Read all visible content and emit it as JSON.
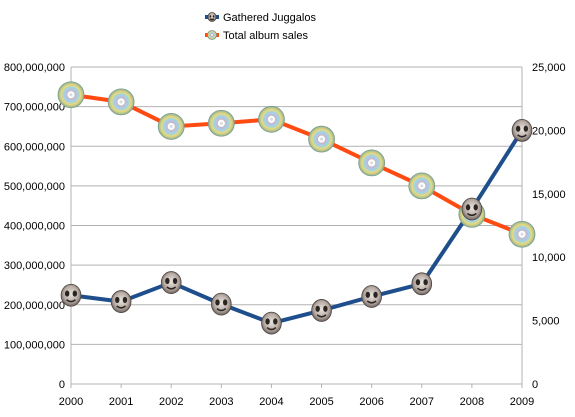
{
  "chart_data": {
    "type": "line",
    "categories": [
      "2000",
      "2001",
      "2002",
      "2003",
      "2004",
      "2005",
      "2006",
      "2007",
      "2008",
      "2009"
    ],
    "series": [
      {
        "name": "Gathered Juggalos",
        "axis": "right",
        "color": "#1f4e8c",
        "marker_icon": "juggalo-face-icon",
        "values": [
          7000,
          6500,
          8000,
          6300,
          4800,
          5800,
          6900,
          7900,
          13800,
          20000
        ]
      },
      {
        "name": "Total album sales",
        "axis": "left",
        "color": "#ff4a12",
        "marker_icon": "cd-disc-icon",
        "values": [
          730000000,
          712000000,
          650000000,
          658000000,
          668000000,
          618000000,
          558000000,
          500000000,
          428000000,
          378000000
        ]
      }
    ],
    "y_left": {
      "range": [
        0,
        800000000
      ],
      "ticks": [
        "0",
        "100,000,000",
        "200,000,000",
        "300,000,000",
        "400,000,000",
        "500,000,000",
        "600,000,000",
        "700,000,000",
        "800,000,000"
      ]
    },
    "y_right": {
      "range": [
        0,
        25000
      ],
      "ticks": [
        "0",
        "5,000",
        "10,000",
        "15,000",
        "20,000",
        "25,000"
      ]
    },
    "grid": "horizontal",
    "legend_position": "top-center"
  }
}
